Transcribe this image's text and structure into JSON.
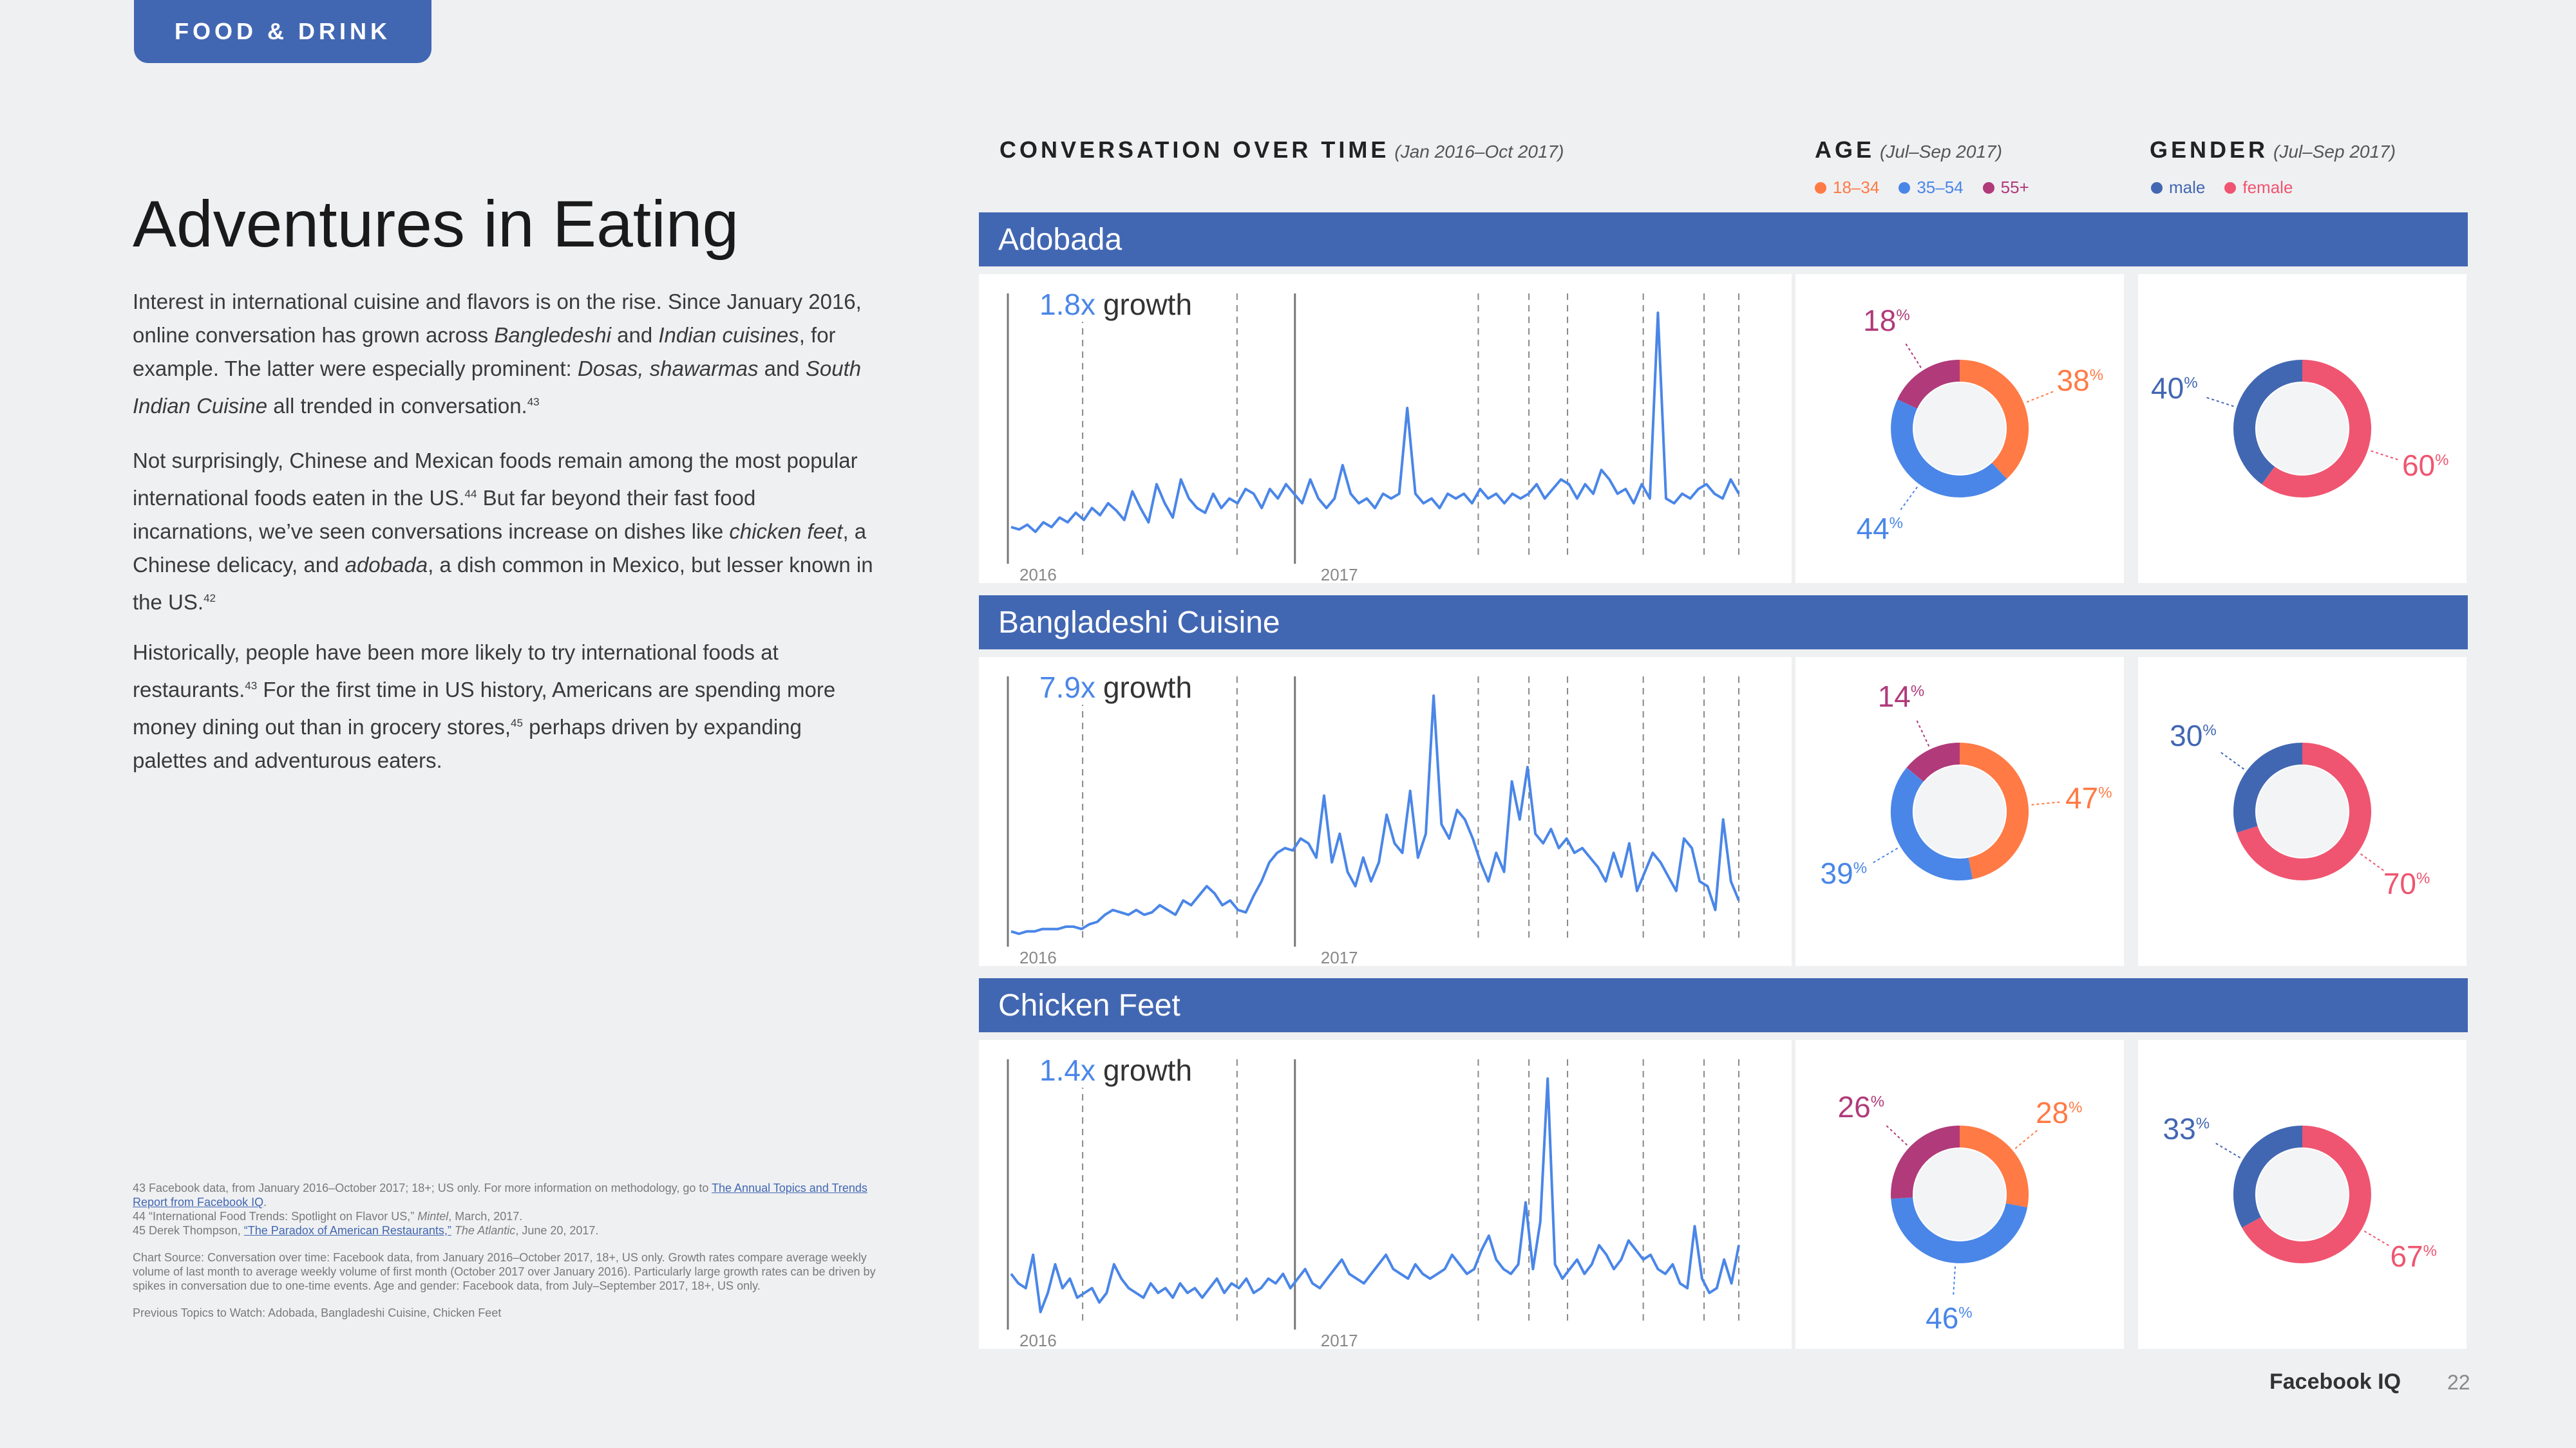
{
  "section_tab": "FOOD & DRINK",
  "title": "Adventures in Eating",
  "paragraphs": [
    [
      "Interest in international cuisine and flavors is on the rise. Since January 2016, online conversation has grown across ",
      "Bangledeshi",
      " and ",
      "Indian cuisines",
      ", for example. The latter were especially prominent: ",
      "Dosas, shawarmas",
      " and ",
      "South Indian Cuisine",
      " all trended in conversation.",
      "43"
    ],
    [
      "Not surprisingly, Chinese and Mexican foods remain among the most popular international foods eaten in the US.",
      "44",
      " But far beyond their fast food incarnations, we’ve seen conversations increase on dishes like ",
      "chicken feet",
      ", a Chinese delicacy, and ",
      "adobada",
      ", a dish common in Mexico, but lesser known in the US.",
      "42"
    ],
    [
      "Historically, people have been more likely to try international foods at restaurants.",
      "43",
      " For the first time in US history, Americans are spending more money dining out than in grocery stores,",
      "45",
      " perhaps driven by expanding palettes and adventurous eaters."
    ]
  ],
  "footnotes": {
    "fn43_prefix": "43  Facebook data, from January 2016–October 2017; 18+; US only. For more information on methodology, go to ",
    "fn43_link": "The Annual Topics and Trends Report from Facebook IQ",
    "fn43_suffix": ".",
    "fn44_prefix": "44  “International Food Trends: Spotlight on Flavor US,” ",
    "fn44_source": "Mintel",
    "fn44_suffix": ", March, 2017.",
    "fn45_prefix": "45  Derek Thompson, ",
    "fn45_link": "“The Paradox of American Restaurants,”",
    "fn45_source": " The Atlantic",
    "fn45_suffix": ", June 20, 2017.",
    "chart_source": "Chart Source:  Conversation over time: Facebook data, from January 2016–October 2017, 18+, US only. Growth rates compare average weekly volume of last month to average weekly volume of first month (October 2017 over January 2016). Particularly large growth rates can be driven by spikes in conversation due to one-time events. Age and gender: Facebook data, from July–September 2017, 18+, US only.",
    "previous": "Previous Topics to Watch: Adobada, Bangladeshi Cuisine, Chicken Feet"
  },
  "headers": {
    "conversation": "CONVERSATION OVER TIME",
    "conversation_range": "(Jan 2016–Oct 2017)",
    "age": "AGE",
    "age_range": "(Jul–Sep 2017)",
    "gender": "GENDER",
    "gender_range": "(Jul–Sep 2017)"
  },
  "legend": {
    "age": [
      "18–34",
      "35–54",
      "55+"
    ],
    "gender": [
      "male",
      "female"
    ]
  },
  "colors": {
    "brand": "#4267b2",
    "line": "#4a86e8",
    "age_18_34": "#ff7a45",
    "age_35_54": "#4a86e8",
    "age_55": "#b03a7a",
    "male": "#4267b2",
    "female": "#ef5570"
  },
  "growth_word": "growth",
  "year_labels": [
    "2016",
    "2017"
  ],
  "percent_sign": "%",
  "topics": [
    {
      "name": "Adobada",
      "growth": "1.8x"
    },
    {
      "name": "Bangladeshi Cuisine",
      "growth": "7.9x"
    },
    {
      "name": "Chicken Feet",
      "growth": "1.4x"
    }
  ],
  "chart_data": [
    {
      "type": "line",
      "title": "Adobada",
      "xlabel": "",
      "ylabel": "",
      "x_ticks": [
        "2016",
        "2017"
      ],
      "ylim": [
        0,
        100
      ],
      "values": [
        10,
        9,
        11,
        8,
        12,
        10,
        14,
        12,
        16,
        13,
        18,
        15,
        20,
        17,
        13,
        25,
        18,
        12,
        28,
        20,
        14,
        30,
        22,
        18,
        16,
        24,
        18,
        22,
        20,
        26,
        24,
        18,
        26,
        22,
        28,
        24,
        20,
        30,
        22,
        18,
        22,
        36,
        24,
        20,
        22,
        18,
        24,
        22,
        24,
        60,
        24,
        20,
        22,
        18,
        24,
        22,
        24,
        20,
        26,
        22,
        24,
        20,
        24,
        22,
        24,
        28,
        22,
        26,
        30,
        28,
        22,
        28,
        24,
        34,
        30,
        24,
        26,
        20,
        28,
        22,
        100,
        22,
        20,
        24,
        22,
        26,
        28,
        24,
        22,
        30,
        24
      ],
      "age": {
        "18-34": 38,
        "35-54": 44,
        "55+": 18
      },
      "gender": {
        "male": 40,
        "female": 60
      }
    },
    {
      "type": "line",
      "title": "Bangladeshi Cuisine",
      "xlabel": "",
      "ylabel": "",
      "x_ticks": [
        "2016",
        "2017"
      ],
      "ylim": [
        0,
        100
      ],
      "values": [
        1,
        0,
        1,
        1,
        2,
        2,
        2,
        3,
        3,
        2,
        4,
        5,
        8,
        10,
        9,
        8,
        10,
        8,
        9,
        12,
        10,
        8,
        14,
        12,
        16,
        20,
        17,
        12,
        14,
        10,
        9,
        16,
        22,
        30,
        34,
        36,
        35,
        40,
        38,
        32,
        58,
        30,
        42,
        26,
        20,
        32,
        22,
        30,
        50,
        38,
        34,
        60,
        32,
        42,
        100,
        46,
        40,
        52,
        48,
        40,
        30,
        22,
        34,
        26,
        64,
        48,
        70,
        42,
        38,
        44,
        36,
        40,
        34,
        36,
        32,
        28,
        22,
        34,
        24,
        38,
        18,
        26,
        34,
        30,
        24,
        18,
        40,
        36,
        22,
        20,
        10,
        48,
        22,
        14
      ],
      "age": {
        "18-34": 47,
        "35-54": 39,
        "55+": 14
      },
      "gender": {
        "male": 30,
        "female": 70
      }
    },
    {
      "type": "line",
      "title": "Chicken Feet",
      "xlabel": "",
      "ylabel": "",
      "x_ticks": [
        "2016",
        "2017"
      ],
      "ylim": [
        0,
        100
      ],
      "values": [
        18,
        14,
        12,
        26,
        2,
        10,
        22,
        12,
        16,
        8,
        10,
        12,
        6,
        10,
        22,
        16,
        12,
        10,
        8,
        14,
        10,
        12,
        8,
        14,
        10,
        12,
        8,
        12,
        16,
        10,
        14,
        12,
        16,
        10,
        12,
        16,
        14,
        18,
        12,
        16,
        20,
        14,
        12,
        16,
        20,
        24,
        18,
        16,
        14,
        18,
        22,
        26,
        20,
        18,
        16,
        22,
        18,
        16,
        18,
        20,
        26,
        22,
        18,
        20,
        28,
        34,
        24,
        20,
        18,
        22,
        48,
        20,
        40,
        100,
        22,
        16,
        20,
        24,
        18,
        22,
        30,
        26,
        20,
        24,
        32,
        28,
        24,
        26,
        20,
        18,
        22,
        14,
        12,
        38,
        16,
        10,
        12,
        24,
        14,
        30
      ],
      "age": {
        "18-34": 28,
        "35-54": 46,
        "55+": 26
      },
      "gender": {
        "male": 33,
        "female": 67
      }
    }
  ],
  "footer": {
    "brand": "Facebook IQ",
    "page": "22"
  }
}
